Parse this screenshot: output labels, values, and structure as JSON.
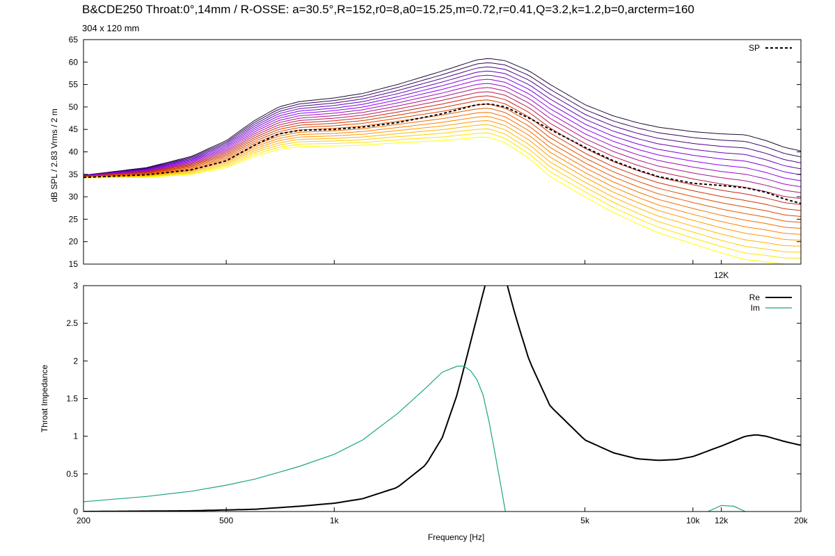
{
  "title": "B&CDE250 Throat:0°,14mm / R-OSSE: a=30.5°,R=152,r0=8,a0=15.25,m=0.72,r=0.41,Q=3.2,k=1.2,b=0,arcterm=160",
  "subtitle": "304 x 120 mm",
  "chart_data": [
    {
      "type": "line",
      "ylabel": "dB SPL / 2.83 Vrms / 2 m",
      "xscale": "log",
      "xlim": [
        200,
        20000
      ],
      "ylim": [
        15,
        65
      ],
      "yticks": [
        "15",
        "20",
        "25",
        "30",
        "35",
        "40",
        "45",
        "50",
        "55",
        "60",
        "65"
      ],
      "annotation": "12K",
      "legend_position": "top-right",
      "colormap": [
        "#1a0a2e",
        "#8a00ff",
        "#cc2a00",
        "#ff8800",
        "#ffff00"
      ],
      "legend": [
        {
          "label": "SP",
          "style": "dashed",
          "color": "#000000"
        }
      ],
      "reference_curve": {
        "name": "SP",
        "x": [
          200,
          300,
          400,
          500,
          600,
          700,
          800,
          1000,
          1200,
          1500,
          2000,
          2500,
          2700,
          3000,
          3500,
          4000,
          5000,
          6000,
          7000,
          8000,
          10000,
          12000,
          14000,
          16000,
          18000,
          20000
        ],
        "y": [
          34.3,
          34.9,
          36.0,
          38.0,
          41.5,
          44.0,
          44.8,
          45.0,
          45.5,
          46.5,
          48.5,
          50.5,
          50.7,
          50.0,
          47.5,
          45.0,
          41.0,
          38.0,
          36.0,
          34.5,
          33.0,
          32.5,
          32.0,
          31.0,
          29.5,
          28.5
        ]
      },
      "series_envelopes": {
        "count": 20,
        "top": {
          "x": [
            200,
            300,
            400,
            500,
            600,
            700,
            800,
            1000,
            1200,
            1500,
            2000,
            2500,
            2700,
            3000,
            3500,
            4000,
            5000,
            6000,
            7000,
            8000,
            10000,
            12000,
            14000,
            16000,
            18000,
            20000
          ],
          "y": [
            34.8,
            36.5,
            39.0,
            42.5,
            47.0,
            50.0,
            51.2,
            52.0,
            53.0,
            55.0,
            58.0,
            60.5,
            60.8,
            60.3,
            58.0,
            55.0,
            50.5,
            48.0,
            46.5,
            45.5,
            44.5,
            44.0,
            43.8,
            42.5,
            41.0,
            40.2
          ]
        },
        "bottom": {
          "x": [
            200,
            300,
            400,
            500,
            600,
            700,
            800,
            1000,
            1200,
            1500,
            2000,
            2500,
            2700,
            3000,
            3500,
            4000,
            5000,
            6000,
            7000,
            8000,
            10000,
            12000,
            14000,
            16000,
            18000,
            20000
          ],
          "y": [
            34.2,
            34.3,
            35.0,
            36.5,
            39.0,
            40.5,
            41.2,
            41.3,
            41.5,
            42.0,
            42.5,
            43.2,
            43.3,
            42.0,
            38.5,
            34.5,
            30.0,
            26.5,
            24.0,
            22.0,
            19.5,
            17.5,
            16.0,
            15.5,
            15.0,
            15.0
          ]
        }
      }
    },
    {
      "type": "line",
      "xlabel": "Frequency [Hz]",
      "ylabel": "Throat Impedance",
      "xscale": "log",
      "xlim": [
        200,
        20000
      ],
      "ylim": [
        0,
        3
      ],
      "yticks": [
        "0",
        "0.5",
        "1",
        "1.5",
        "2",
        "2.5",
        "3"
      ],
      "xticks": [
        {
          "v": 200,
          "label": "200"
        },
        {
          "v": 500,
          "label": "500"
        },
        {
          "v": 1000,
          "label": "1k"
        },
        {
          "v": 5000,
          "label": "5k"
        },
        {
          "v": 10000,
          "label": "10k"
        },
        {
          "v": 12000,
          "label": "12k"
        },
        {
          "v": 20000,
          "label": "20k"
        }
      ],
      "legend_position": "top-right",
      "series": [
        {
          "name": "Re",
          "color": "#000000",
          "x": [
            200,
            400,
            600,
            800,
            1000,
            1200,
            1500,
            1800,
            2000,
            2200,
            2400,
            2600,
            2700,
            2800,
            3000,
            3200,
            3500,
            4000,
            5000,
            6000,
            7000,
            8000,
            9000,
            10000,
            12000,
            14000,
            15000,
            16000,
            18000,
            20000
          ],
          "y": [
            0.0,
            0.01,
            0.03,
            0.07,
            0.11,
            0.17,
            0.32,
            0.62,
            0.98,
            1.55,
            2.25,
            2.9,
            3.2,
            3.4,
            3.1,
            2.6,
            2.0,
            1.4,
            0.95,
            0.78,
            0.7,
            0.68,
            0.69,
            0.73,
            0.87,
            1.0,
            1.02,
            1.0,
            0.93,
            0.88
          ]
        },
        {
          "name": "Im",
          "color": "#1aa386",
          "x": [
            200,
            300,
            400,
            500,
            600,
            700,
            800,
            1000,
            1200,
            1500,
            1800,
            2000,
            2200,
            2300,
            2400,
            2500,
            2600,
            2700,
            2800,
            2900,
            3000,
            11000,
            12000,
            13000,
            14000
          ],
          "y": [
            0.13,
            0.2,
            0.27,
            0.35,
            0.43,
            0.52,
            0.6,
            0.76,
            0.95,
            1.3,
            1.64,
            1.85,
            1.93,
            1.93,
            1.87,
            1.75,
            1.55,
            1.2,
            0.8,
            0.4,
            0.0,
            0.0,
            0.08,
            0.07,
            0.0
          ]
        }
      ]
    }
  ]
}
